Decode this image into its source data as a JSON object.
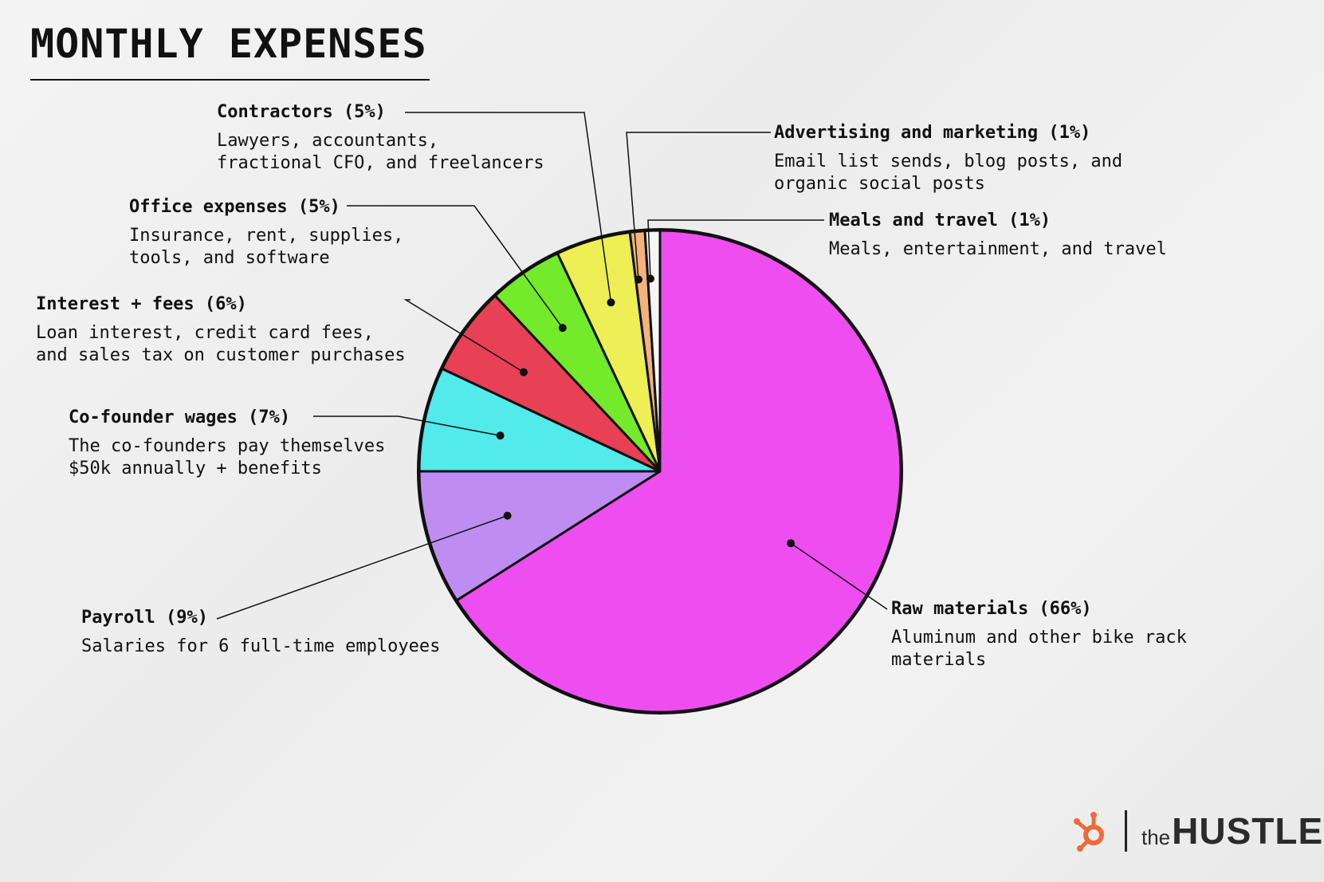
{
  "title": "MONTHLY EXPENSES",
  "logo": {
    "the": "the",
    "hustle": "HUSTLE",
    "hub_color": "#f06a3a"
  },
  "chart_data": {
    "type": "pie",
    "title": "MONTHLY EXPENSES",
    "start": "12 o'clock, clockwise",
    "slices": [
      {
        "label": "Raw materials",
        "value": 66,
        "color": "#ee4ef0",
        "head": "Raw materials (66%)",
        "desc": "Aluminum and other bike rack\nmaterials"
      },
      {
        "label": "Payroll",
        "value": 9,
        "color": "#bf8df2",
        "head": "Payroll (9%)",
        "desc": "Salaries for 6 full-time employees"
      },
      {
        "label": "Co-founder wages",
        "value": 7,
        "color": "#52eaea",
        "head": "Co-founder wages (7%)",
        "desc": "The co-founders pay themselves\n$50k annually + benefits"
      },
      {
        "label": "Interest + fees",
        "value": 6,
        "color": "#e84055",
        "head": "Interest + fees (6%)",
        "desc": "Loan interest, credit card fees,\nand sales tax on customer purchases"
      },
      {
        "label": "Office expenses",
        "value": 5,
        "color": "#73ea2a",
        "head": "Office expenses (5%)",
        "desc": "Insurance, rent, supplies,\ntools, and software"
      },
      {
        "label": "Contractors",
        "value": 5,
        "color": "#eeee55",
        "head": "Contractors (5%)",
        "desc": "Lawyers, accountants,\nfractional CFO, and freelancers"
      },
      {
        "label": "Advertising and marketing",
        "value": 1,
        "color": "#f4b37a",
        "head": "Advertising and marketing (1%)",
        "desc": "Email list sends, blog posts, and\norganic social posts"
      },
      {
        "label": "Meals and travel",
        "value": 1,
        "color": "#f5f5f5",
        "head": "Meals and travel (1%)",
        "desc": "Meals, entertainment, and travel"
      }
    ]
  }
}
